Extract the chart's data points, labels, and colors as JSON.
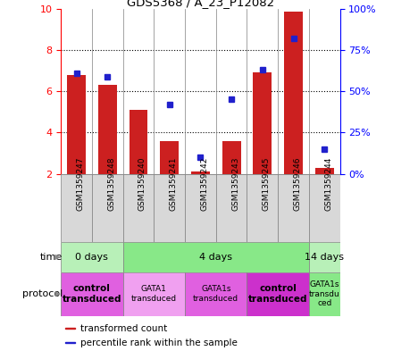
{
  "title": "GDS5368 / A_23_P12082",
  "samples": [
    "GSM1359247",
    "GSM1359248",
    "GSM1359240",
    "GSM1359241",
    "GSM1359242",
    "GSM1359243",
    "GSM1359245",
    "GSM1359246",
    "GSM1359244"
  ],
  "transformed_counts": [
    6.8,
    6.3,
    5.1,
    3.6,
    2.1,
    3.6,
    6.9,
    9.85,
    2.3
  ],
  "percentile_ranks": [
    61,
    59,
    null,
    42,
    10,
    45,
    63,
    82,
    15
  ],
  "y_min": 2,
  "y_max": 10,
  "y_ticks": [
    2,
    4,
    6,
    8,
    10
  ],
  "right_y_ticks": [
    0,
    25,
    50,
    75,
    100
  ],
  "right_y_tick_positions": [
    2,
    4,
    6,
    8,
    10
  ],
  "bar_color": "#cc2020",
  "dot_color": "#2020cc",
  "bar_bottom": 2,
  "time_groups": [
    {
      "label": "0 days",
      "start": 0,
      "end": 2,
      "color": "#b8f0b8"
    },
    {
      "label": "4 days",
      "start": 2,
      "end": 8,
      "color": "#88e888"
    },
    {
      "label": "14 days",
      "start": 8,
      "end": 9,
      "color": "#b8f0b8"
    }
  ],
  "protocol_groups": [
    {
      "label": "control\ntransduced",
      "start": 0,
      "end": 2,
      "color": "#e060e0",
      "bold": true
    },
    {
      "label": "GATA1\ntransduced",
      "start": 2,
      "end": 4,
      "color": "#f0a0f0",
      "bold": false
    },
    {
      "label": "GATA1s\ntransduced",
      "start": 4,
      "end": 6,
      "color": "#e060e0",
      "bold": false
    },
    {
      "label": "control\ntransduced",
      "start": 6,
      "end": 8,
      "color": "#cc30cc",
      "bold": true
    },
    {
      "label": "GATA1s\ntransdu\nced",
      "start": 8,
      "end": 9,
      "color": "#88e888",
      "bold": false
    }
  ],
  "legend_items": [
    {
      "color": "#cc2020",
      "label": "transformed count"
    },
    {
      "color": "#2020cc",
      "label": "percentile rank within the sample"
    }
  ]
}
